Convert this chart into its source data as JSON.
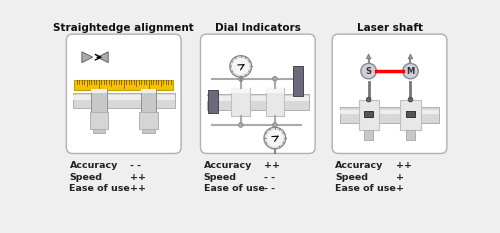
{
  "panels": [
    {
      "title": "Straightedge alignment",
      "metrics": [
        {
          "label": "Accuracy",
          "value": "- -"
        },
        {
          "label": "Speed",
          "value": "++"
        },
        {
          "label": "Ease of use",
          "value": "++"
        }
      ]
    },
    {
      "title": "Dial Indicators",
      "metrics": [
        {
          "label": "Accuracy",
          "value": "++"
        },
        {
          "label": "Speed",
          "value": "- -"
        },
        {
          "label": "Ease of use",
          "value": "- -"
        }
      ]
    },
    {
      "title": "Laser shaft",
      "metrics": [
        {
          "label": "Accuracy",
          "value": "++"
        },
        {
          "label": "Speed",
          "value": "+"
        },
        {
          "label": "Ease of use",
          "value": "+"
        }
      ]
    }
  ],
  "background": "#efefef",
  "box_facecolor": "#ffffff",
  "box_edgecolor": "#b0b0b0",
  "title_color": "#111111",
  "text_color": "#222222",
  "ruler_yellow": "#f5c200",
  "ruler_edge": "#c8a000",
  "pipe_fill": "#d0d0d0",
  "pipe_edge": "#aaaaaa",
  "flange_fill": "#c8c8c8",
  "flange_edge": "#909090",
  "disc_fill": "#e0e0e0",
  "disc_edge": "#aaaaaa",
  "dark_block": "#6a6a7a",
  "dark_block_edge": "#444455",
  "gauge_face": "#f5f5f5",
  "gauge_edge": "#888888",
  "laser_red": "#ff0000",
  "rod_color": "#777777",
  "sensor_fill": "#d0d0d8",
  "sensor_edge": "#888898"
}
